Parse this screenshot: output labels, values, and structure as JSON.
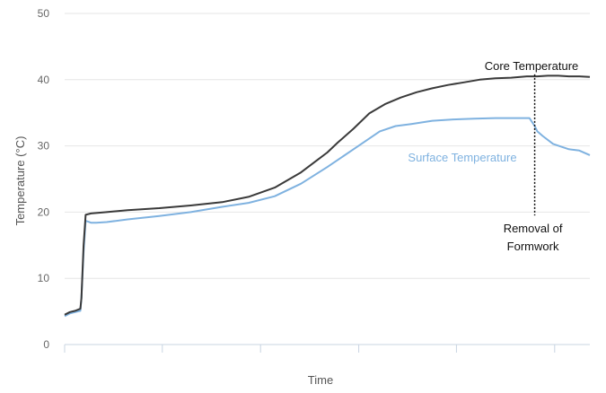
{
  "chart_data": {
    "type": "line",
    "title": "",
    "xlabel": "Time",
    "ylabel": "Temperature (°C)",
    "ylim": [
      0,
      50
    ],
    "yticks": [
      0,
      10,
      20,
      30,
      40,
      50
    ],
    "xlim": [
      0,
      100
    ],
    "grid": true,
    "series": [
      {
        "name": "Core Temperature",
        "color": "#3a3a3a",
        "x": [
          0,
          1,
          2,
          3,
          3.2,
          3.6,
          4,
          5,
          8,
          12,
          18,
          24,
          30,
          35,
          40,
          45,
          48,
          50,
          52,
          55,
          58,
          61,
          64,
          67,
          70,
          73,
          76,
          79,
          82,
          85,
          88,
          90,
          92,
          94,
          96,
          98,
          100
        ],
        "y": [
          4.5,
          4.9,
          5.1,
          5.4,
          7.0,
          15.0,
          19.6,
          19.8,
          20.0,
          20.3,
          20.6,
          21.0,
          21.5,
          22.3,
          23.7,
          26.0,
          27.8,
          29.0,
          30.5,
          32.6,
          34.9,
          36.3,
          37.3,
          38.1,
          38.7,
          39.2,
          39.6,
          40.0,
          40.2,
          40.3,
          40.5,
          40.5,
          40.6,
          40.6,
          40.5,
          40.5,
          40.4
        ]
      },
      {
        "name": "Surface Temperature",
        "color": "#7fb2e0",
        "x": [
          0,
          1,
          2,
          3,
          3.2,
          3.6,
          4,
          5,
          6,
          8,
          12,
          18,
          24,
          30,
          35,
          40,
          45,
          50,
          55,
          60,
          63,
          66,
          70,
          74,
          78,
          82,
          86,
          88.5,
          89.5,
          90,
          91,
          93,
          96,
          98,
          100
        ],
        "y": [
          4.3,
          4.7,
          4.9,
          5.1,
          7.0,
          14.0,
          18.7,
          18.4,
          18.4,
          18.5,
          18.9,
          19.4,
          20.0,
          20.8,
          21.4,
          22.4,
          24.3,
          26.8,
          29.5,
          32.2,
          33.0,
          33.3,
          33.8,
          34.0,
          34.1,
          34.2,
          34.2,
          34.2,
          33.0,
          32.2,
          31.5,
          30.3,
          29.5,
          29.3,
          28.6
        ]
      }
    ],
    "annotations": {
      "core_label": "Core Temperature",
      "surface_label": "Surface Temperature",
      "formwork_line1": "Removal of",
      "formwork_line2": "Formwork",
      "formwork_x": 89.5
    }
  }
}
